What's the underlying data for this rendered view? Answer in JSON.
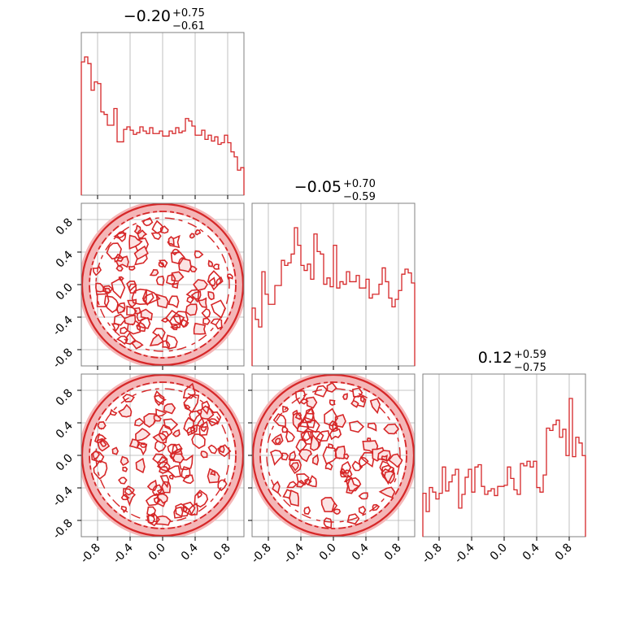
{
  "chart_data": {
    "type": "corner",
    "color": "#d62728",
    "axis_range": [
      -1.0,
      1.0
    ],
    "tick_labels": [
      "-0.8",
      "-0.4",
      "0.0",
      "0.4",
      "0.8"
    ],
    "tick_values": [
      -0.8,
      -0.4,
      0.0,
      0.4,
      0.8
    ],
    "grid": true,
    "diagonal": [
      {
        "title_main": "−0.20",
        "title_sup": "+0.75",
        "title_sub": "−0.61",
        "bins": [
          -1.0,
          -0.96,
          -0.92,
          -0.88,
          -0.84,
          -0.8,
          -0.76,
          -0.72,
          -0.68,
          -0.64,
          -0.6,
          -0.56,
          -0.52,
          -0.48,
          -0.44,
          -0.4,
          -0.36,
          -0.32,
          -0.28,
          -0.24,
          -0.2,
          -0.16,
          -0.12,
          -0.08,
          -0.04,
          0.0,
          0.04,
          0.08,
          0.12,
          0.16,
          0.2,
          0.24,
          0.28,
          0.32,
          0.36,
          0.4,
          0.44,
          0.48,
          0.52,
          0.56,
          0.6,
          0.64,
          0.68,
          0.72,
          0.76,
          0.8,
          0.84,
          0.88,
          0.92,
          0.96
        ],
        "values": [
          160,
          166,
          158,
          126,
          136,
          134,
          100,
          97,
          84,
          84,
          104,
          64,
          64,
          79,
          82,
          78,
          73,
          75,
          82,
          77,
          74,
          81,
          74,
          74,
          77,
          71,
          71,
          77,
          74,
          81,
          75,
          77,
          92,
          89,
          83,
          72,
          72,
          78,
          67,
          72,
          65,
          70,
          61,
          63,
          72,
          63,
          52,
          46,
          30,
          33
        ]
      },
      {
        "title_main": "−0.05",
        "title_sup": "+0.70",
        "title_sub": "−0.59",
        "bins": [
          -1.0,
          -0.96,
          -0.92,
          -0.88,
          -0.84,
          -0.8,
          -0.76,
          -0.72,
          -0.68,
          -0.64,
          -0.6,
          -0.56,
          -0.52,
          -0.48,
          -0.44,
          -0.4,
          -0.36,
          -0.32,
          -0.28,
          -0.24,
          -0.2,
          -0.16,
          -0.12,
          -0.08,
          -0.04,
          0.0,
          0.04,
          0.08,
          0.12,
          0.16,
          0.2,
          0.24,
          0.28,
          0.32,
          0.36,
          0.4,
          0.44,
          0.48,
          0.52,
          0.56,
          0.6,
          0.64,
          0.68,
          0.72,
          0.76,
          0.8,
          0.84,
          0.88,
          0.92,
          0.96
        ],
        "values": [
          46,
          37,
          31,
          75,
          57,
          49,
          49,
          64,
          64,
          84,
          80,
          82,
          89,
          110,
          96,
          80,
          76,
          81,
          69,
          105,
          91,
          89,
          65,
          70,
          63,
          96,
          62,
          67,
          65,
          75,
          67,
          67,
          72,
          62,
          62,
          69,
          54,
          57,
          57,
          65,
          78,
          67,
          54,
          47,
          53,
          60,
          73,
          77,
          74,
          66
        ]
      },
      {
        "title_main": "0.12",
        "title_sup": "+0.59",
        "title_sub": "−0.75",
        "bins": [
          -1.0,
          -0.96,
          -0.92,
          -0.88,
          -0.84,
          -0.8,
          -0.76,
          -0.72,
          -0.68,
          -0.64,
          -0.6,
          -0.56,
          -0.52,
          -0.48,
          -0.44,
          -0.4,
          -0.36,
          -0.32,
          -0.28,
          -0.24,
          -0.2,
          -0.16,
          -0.12,
          -0.08,
          -0.04,
          0.0,
          0.04,
          0.08,
          0.12,
          0.16,
          0.2,
          0.24,
          0.28,
          0.32,
          0.36,
          0.4,
          0.44,
          0.48,
          0.52,
          0.56,
          0.6,
          0.64,
          0.68,
          0.72,
          0.76,
          0.8,
          0.84,
          0.88,
          0.92,
          0.96
        ],
        "values": [
          38,
          22,
          43,
          39,
          33,
          38,
          61,
          40,
          48,
          54,
          59,
          25,
          37,
          52,
          59,
          39,
          61,
          63,
          44,
          37,
          40,
          42,
          36,
          44,
          44,
          45,
          61,
          51,
          41,
          37,
          64,
          62,
          66,
          61,
          66,
          43,
          39,
          54,
          95,
          93,
          98,
          102,
          87,
          94,
          71,
          121,
          70,
          87,
          82,
          71
        ]
      }
    ],
    "contours": [
      {
        "panel": "x2-vs-x1",
        "support": "disk",
        "radius": 1.0
      },
      {
        "panel": "x3-vs-x1",
        "support": "disk",
        "radius": 1.0
      },
      {
        "panel": "x3-vs-x2",
        "support": "disk",
        "radius": 1.0
      }
    ]
  }
}
